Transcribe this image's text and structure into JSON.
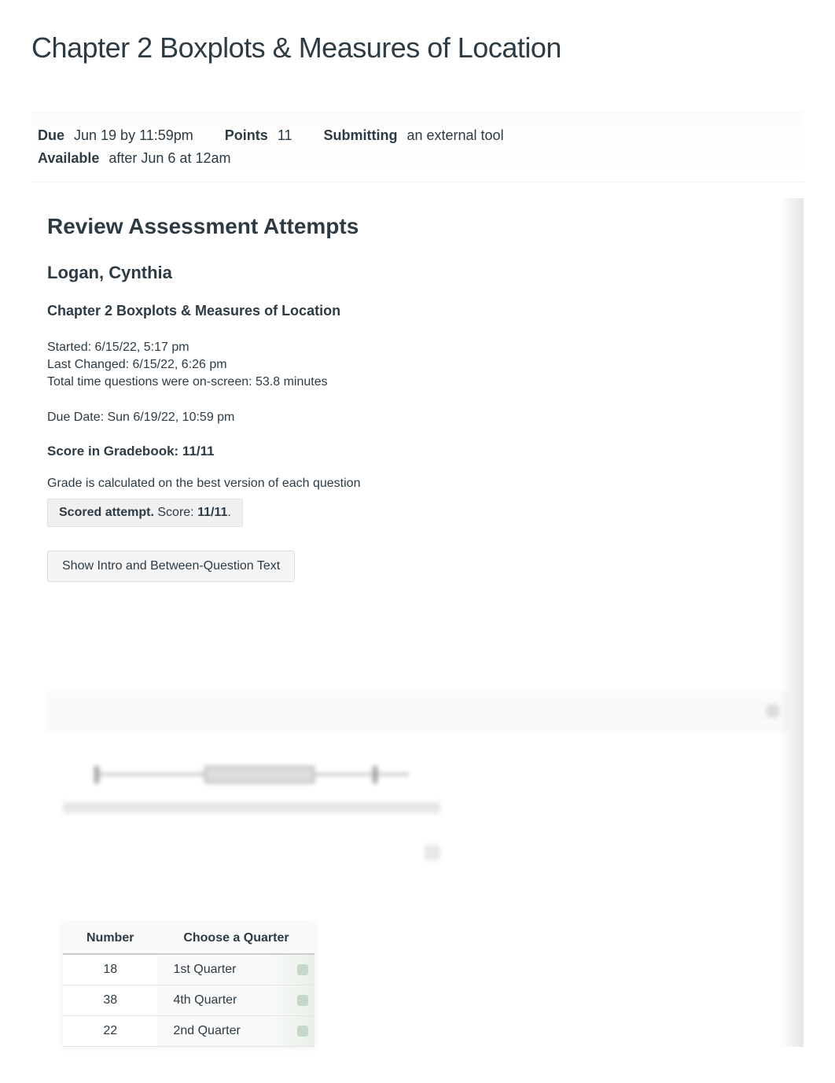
{
  "page_title": "Chapter 2 Boxplots & Measures of Location",
  "meta": {
    "due_label": "Due",
    "due_value": "Jun 19 by 11:59pm",
    "points_label": "Points",
    "points_value": "11",
    "submitting_label": "Submitting",
    "submitting_value": "an external tool",
    "available_label": "Available",
    "available_value": "after Jun 6 at 12am"
  },
  "review": {
    "heading": "Review Assessment Attempts",
    "student_name": "Logan, Cynthia",
    "chapter_title": "Chapter 2 Boxplots & Measures of Location",
    "started": "Started: 6/15/22, 5:17 pm",
    "last_changed": "Last Changed: 6/15/22, 6:26 pm",
    "time_on_screen": "Total time questions were on-screen: 53.8 minutes",
    "due_date": "Due Date: Sun 6/19/22, 10:59 pm",
    "score_label": "Score in Gradebook: 11/11",
    "grade_note": "Grade is calculated on the best version of each question",
    "attempt_label": "Scored attempt.",
    "attempt_score_prefix": " Score: ",
    "attempt_score": "11/11",
    "attempt_period": ".",
    "toggle_label": "Show Intro and Between-Question Text"
  },
  "table": {
    "col1_header": "Number",
    "col2_header": "Choose a Quarter",
    "rows": [
      {
        "number": "18",
        "quarter": "1st Quarter"
      },
      {
        "number": "38",
        "quarter": "4th Quarter"
      },
      {
        "number": "22",
        "quarter": "2nd Quarter"
      }
    ]
  },
  "colors": {
    "text_primary": "#2d3b45",
    "background": "#ffffff",
    "box_bg": "#f0f0f0",
    "box_border": "#e0e0e0",
    "button_bg": "#f5f5f5",
    "button_border": "#dddddd",
    "table_header_bg": "#fafafa",
    "table_border": "#cccccc",
    "table_row_border": "#e5e5e5"
  },
  "typography": {
    "title_fontsize": 36,
    "meta_fontsize": 18,
    "review_heading_fontsize": 28,
    "student_fontsize": 22,
    "chapter_fontsize": 18,
    "body_fontsize": 16
  }
}
